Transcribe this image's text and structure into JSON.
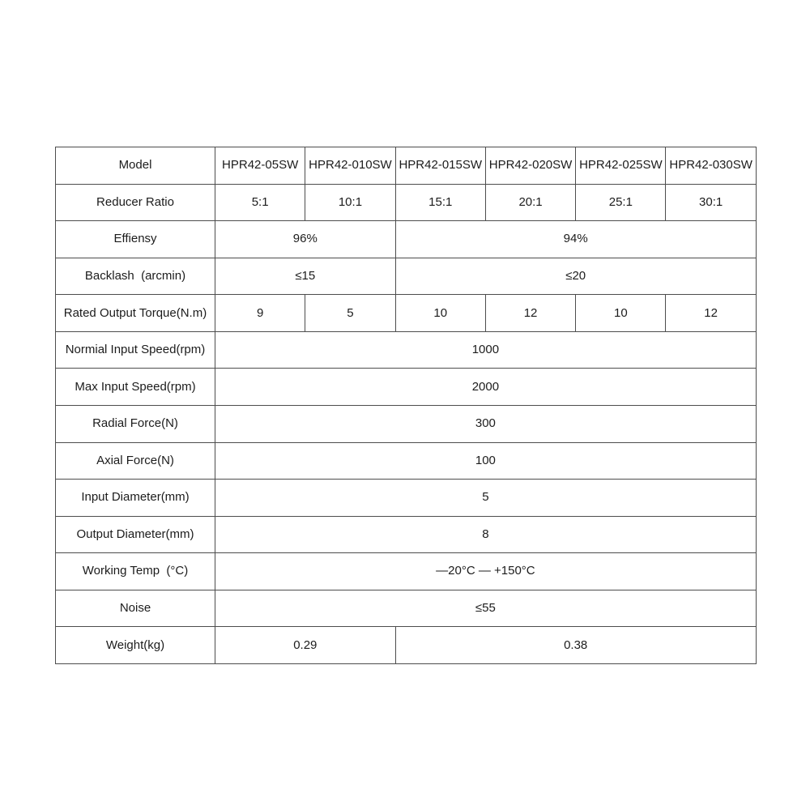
{
  "table": {
    "name": "HPR42 series reducer specification table",
    "columns": 7,
    "rows": [
      {
        "label": "Model",
        "is_header": true,
        "cells": [
          {
            "text": "HPR42-05SW",
            "span": 1
          },
          {
            "text": "HPR42-010SW",
            "span": 1
          },
          {
            "text": "HPR42-015SW",
            "span": 1
          },
          {
            "text": "HPR42-020SW",
            "span": 1
          },
          {
            "text": "HPR42-025SW",
            "span": 1
          },
          {
            "text": "HPR42-030SW",
            "span": 1
          }
        ]
      },
      {
        "label": "Reducer Ratio",
        "cells": [
          {
            "text": "5:1",
            "span": 1
          },
          {
            "text": "10:1",
            "span": 1
          },
          {
            "text": "15:1",
            "span": 1
          },
          {
            "text": "20:1",
            "span": 1
          },
          {
            "text": "25:1",
            "span": 1
          },
          {
            "text": "30:1",
            "span": 1
          }
        ]
      },
      {
        "label": "Effiensy",
        "cells": [
          {
            "text": "96%",
            "span": 2
          },
          {
            "text": "94%",
            "span": 4
          }
        ]
      },
      {
        "label": "Backlash  (arcmin)",
        "cells": [
          {
            "text": "≤15",
            "span": 2
          },
          {
            "text": "≤20",
            "span": 4
          }
        ]
      },
      {
        "label": "Rated Output Torque(N.m)",
        "cells": [
          {
            "text": "9",
            "span": 1
          },
          {
            "text": "5",
            "span": 1
          },
          {
            "text": "10",
            "span": 1
          },
          {
            "text": "12",
            "span": 1
          },
          {
            "text": "10",
            "span": 1
          },
          {
            "text": "12",
            "span": 1
          }
        ]
      },
      {
        "label": "Normial Input Speed(rpm)",
        "cells": [
          {
            "text": "1000",
            "span": 6
          }
        ]
      },
      {
        "label": "Max Input Speed(rpm)",
        "cells": [
          {
            "text": "2000",
            "span": 6
          }
        ]
      },
      {
        "label": "Radial Force(N)",
        "cells": [
          {
            "text": "300",
            "span": 6
          }
        ]
      },
      {
        "label": "Axial Force(N)",
        "cells": [
          {
            "text": "100",
            "span": 6
          }
        ]
      },
      {
        "label": "Input Diameter(mm)",
        "cells": [
          {
            "text": "5",
            "span": 6
          }
        ]
      },
      {
        "label": "Output Diameter(mm)",
        "cells": [
          {
            "text": "8",
            "span": 6
          }
        ]
      },
      {
        "label": "Working Temp  (°C)",
        "cells": [
          {
            "text": "—20°C —  +150°C",
            "span": 6
          }
        ]
      },
      {
        "label": "Noise",
        "cells": [
          {
            "text": "≤55",
            "span": 6
          }
        ]
      },
      {
        "label": "Weight(kg)",
        "cells": [
          {
            "text": "0.29",
            "span": 2
          },
          {
            "text": "0.38",
            "span": 4
          }
        ]
      }
    ],
    "colors": {
      "background": "#ffffff",
      "border": "#4d4d4d",
      "text": "#1c1c1c"
    }
  }
}
